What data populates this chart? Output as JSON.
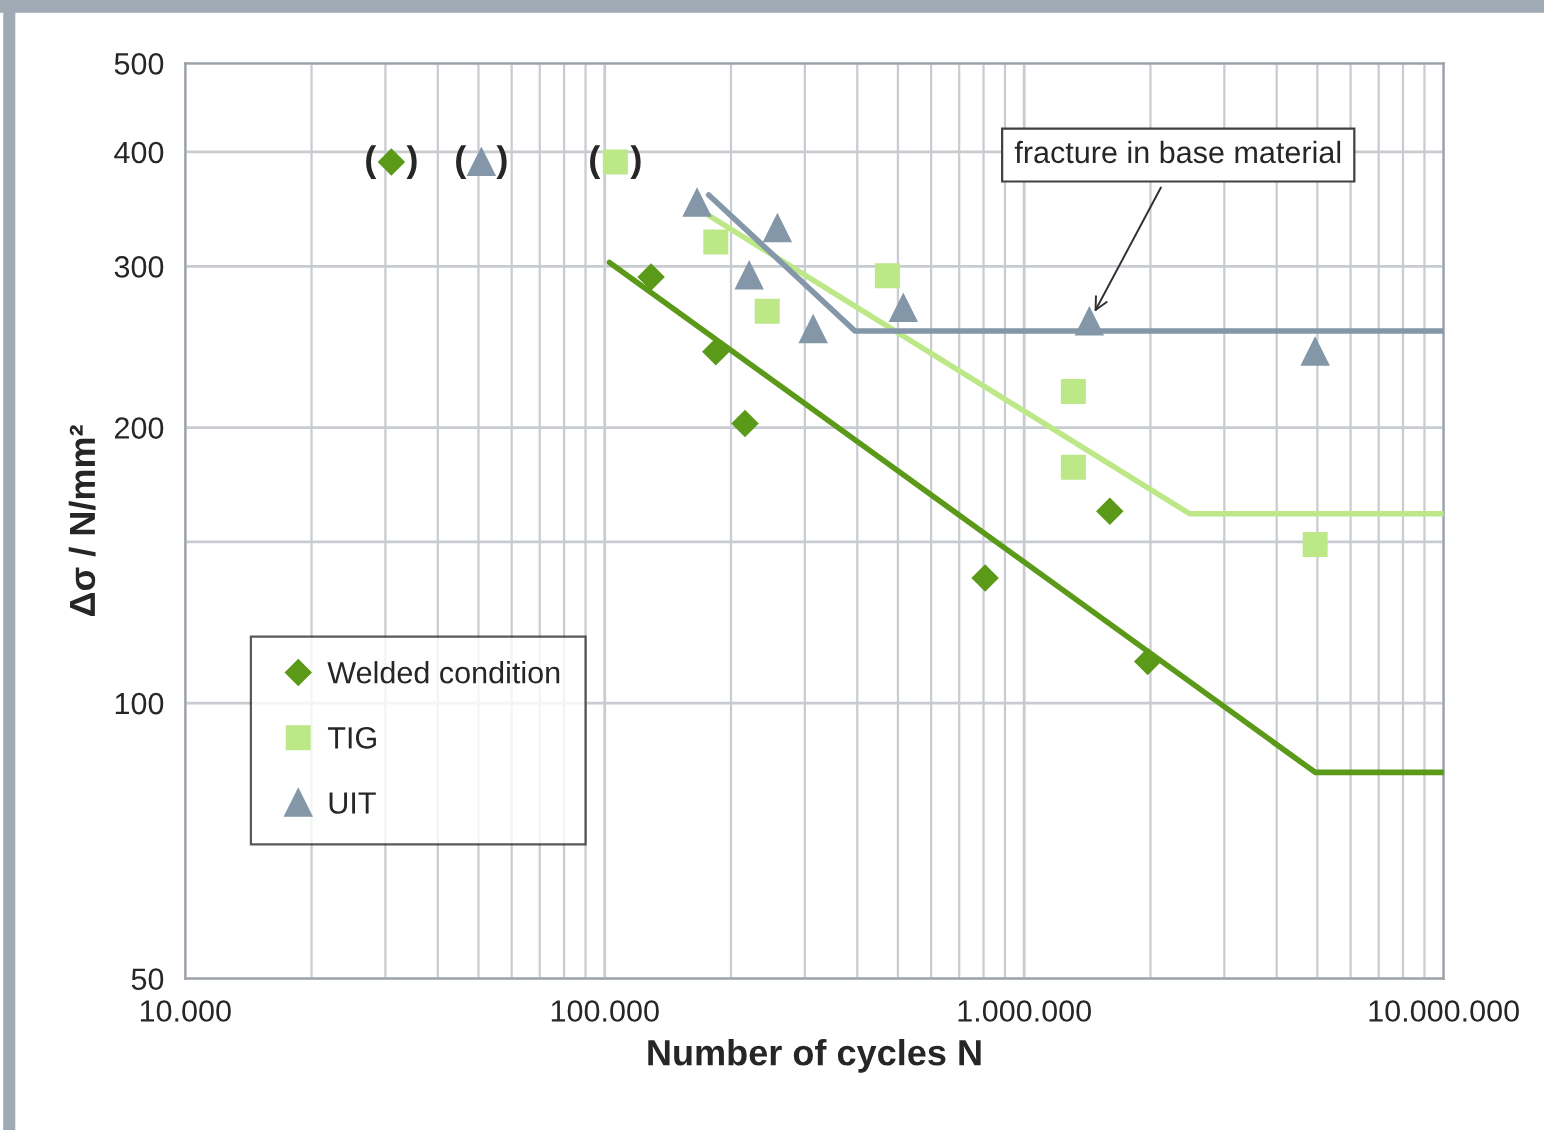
{
  "chart_data": {
    "type": "scatter",
    "xlabel": "Number of cycles N",
    "ylabel": "Δσ / N/mm²",
    "log": "xy",
    "xlim": [
      10000,
      10000000
    ],
    "xticks": [
      {
        "value": 10000,
        "label": "10.000"
      },
      {
        "value": 100000,
        "label": "100.000"
      },
      {
        "value": 1000000,
        "label": "1.000.000"
      },
      {
        "value": 10000000,
        "label": "10.000.000"
      }
    ],
    "ylim": [
      50,
      500
    ],
    "yticks": [
      50,
      100,
      {
        "value": 150,
        "label": null
      },
      200,
      300,
      400,
      500
    ],
    "grid": true,
    "legend": "bottom left",
    "series": [
      {
        "name": "Welded condition",
        "marker": "diamond",
        "color": "#5a9a18",
        "x": [
          31000,
          129000,
          184000,
          216000,
          807000,
          1600000,
          1970000
        ],
        "values": [
          390,
          292,
          242,
          202,
          137,
          162,
          111
        ]
      },
      {
        "name": "TIG",
        "marker": "square",
        "color": "#bce888",
        "x": [
          106000,
          184000,
          244000,
          472000,
          1310000,
          1310000,
          4940000
        ],
        "values": [
          390,
          319,
          268,
          293,
          219,
          181,
          149
        ]
      },
      {
        "name": "UIT",
        "marker": "triangle",
        "color": "#8497a8",
        "x": [
          50800,
          166000,
          258000,
          221000,
          314000,
          515000,
          1430000,
          4940000
        ],
        "values": [
          390,
          352,
          330,
          293,
          256,
          270,
          261,
          242
        ]
      },
      {
        "type": "line",
        "color": "#5a9a18",
        "x": [
          102600,
          4940000,
          10000000
        ],
        "values": [
          303,
          84,
          84
        ]
      },
      {
        "type": "line",
        "color": "#bce888",
        "x": [
          177000,
          2480000,
          10000000
        ],
        "values": [
          341,
          161,
          161
        ]
      },
      {
        "type": "line",
        "color": "#8497a8",
        "x": [
          177000,
          395000,
          10000000
        ],
        "values": [
          359,
          255,
          255
        ]
      }
    ],
    "annotations": [
      {
        "text": "(   )",
        "x": 31000,
        "y": 390
      },
      {
        "text": "(   )",
        "x": 50800,
        "y": 390
      },
      {
        "text": "(   )",
        "x": 106000,
        "y": 390
      },
      {
        "text": "fracture in base material",
        "x": 1430000,
        "y": 261
      }
    ]
  }
}
